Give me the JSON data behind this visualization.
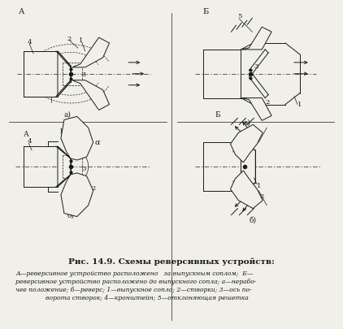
{
  "title": "Рис. 14.9. Схемы реверсивных устройств:",
  "caption_line1": "А—реверсивное устройство расположено   за выпускным соплом;  Б—",
  "caption_line2": "реверсивное устройство расположено до выпускного сопла; а—нерабо-",
  "caption_line3": "чее положение; б—реверс; 1—выпускное сопло; 2—створки; 3—ось по-",
  "caption_line4": "ворота створок; 4—кронштейн; 5—отклоняющая решетка",
  "bg_color": "#f0efe8",
  "line_color": "#1a1a1a"
}
